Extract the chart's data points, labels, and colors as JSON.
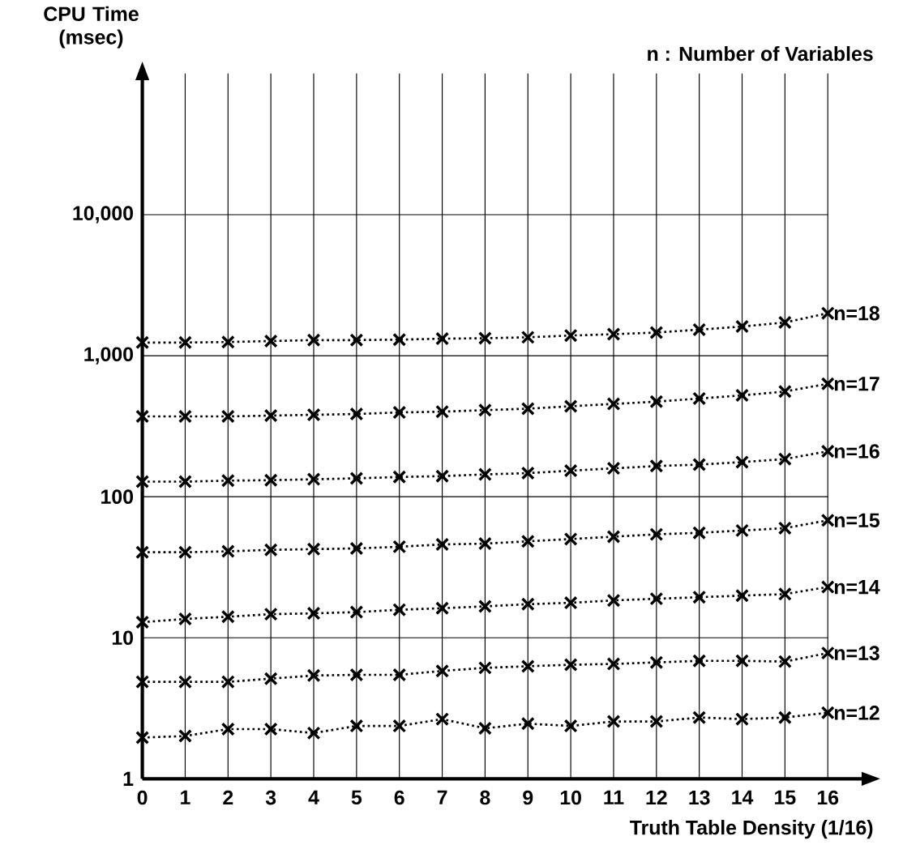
{
  "chart_data": {
    "type": "line",
    "xlabel": "Truth Table Density (1/16)",
    "ylabel": "CPU Time (msec)",
    "annotations": [
      "n : Number of Variables"
    ],
    "x": [
      0,
      1,
      2,
      3,
      4,
      5,
      6,
      7,
      8,
      9,
      10,
      11,
      12,
      13,
      14,
      15,
      16
    ],
    "log": "y",
    "grid": true,
    "marker": "cross",
    "line_style": "dotted",
    "xlim": [
      0,
      16
    ],
    "ylim": [
      1,
      100000
    ],
    "xticks": [
      0,
      1,
      2,
      3,
      4,
      5,
      6,
      7,
      8,
      9,
      10,
      11,
      12,
      13,
      14,
      15,
      16
    ],
    "yticks": [
      1,
      10,
      100,
      {
        "value": 1000,
        "label": "1,000"
      },
      {
        "value": 10000,
        "label": "10,000"
      }
    ],
    "series": [
      {
        "name": "n=18",
        "color": "#000000",
        "values": [
          1240,
          1240,
          1250,
          1270,
          1290,
          1290,
          1300,
          1320,
          1330,
          1350,
          1390,
          1420,
          1460,
          1530,
          1610,
          1720,
          2000
        ]
      },
      {
        "name": "n=17",
        "color": "#000000",
        "values": [
          371,
          371,
          371,
          376,
          381,
          386,
          396,
          401,
          411,
          421,
          438,
          455,
          472,
          497,
          523,
          557,
          632
        ]
      },
      {
        "name": "n=16",
        "color": "#000000",
        "values": [
          128,
          128,
          130,
          131,
          133,
          135,
          138,
          140,
          144,
          147,
          153,
          159,
          165,
          169,
          176,
          185,
          210
        ]
      },
      {
        "name": "n=15",
        "color": "#000000",
        "values": [
          40.4,
          40.4,
          41,
          42,
          42.5,
          43,
          44.2,
          45.9,
          46.5,
          48.3,
          50.1,
          52.1,
          54.1,
          55.5,
          57.6,
          59.9,
          68
        ]
      },
      {
        "name": "n=14",
        "color": "#000000",
        "values": [
          12.9,
          13.6,
          14.1,
          14.7,
          14.9,
          15.2,
          15.8,
          16.2,
          16.7,
          17.3,
          17.7,
          18.4,
          18.9,
          19.4,
          19.9,
          20.4,
          22.9
        ]
      },
      {
        "name": "n=13",
        "color": "#000000",
        "values": [
          4.87,
          4.87,
          4.87,
          5.13,
          5.4,
          5.46,
          5.46,
          5.82,
          6.12,
          6.28,
          6.44,
          6.52,
          6.69,
          6.86,
          6.86,
          6.78,
          7.79
        ]
      },
      {
        "name": "n=12",
        "color": "#000000",
        "values": [
          1.96,
          2.01,
          2.25,
          2.25,
          2.11,
          2.37,
          2.37,
          2.65,
          2.28,
          2.46,
          2.37,
          2.55,
          2.55,
          2.72,
          2.65,
          2.72,
          2.94
        ]
      }
    ]
  }
}
